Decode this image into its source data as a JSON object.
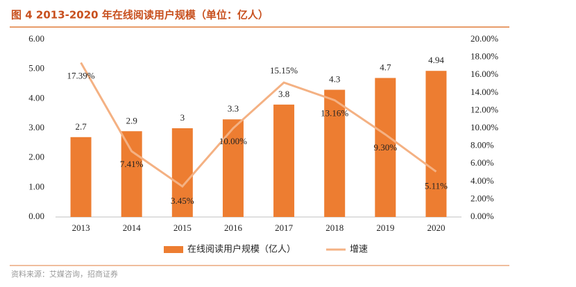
{
  "chart_data": {
    "type": "bar-line",
    "title": "图 4 2013-2020 年在线阅读用户规模（单位：亿人）",
    "source": "资料来源：艾媒咨询，招商证券",
    "categories": [
      "2013",
      "2014",
      "2015",
      "2016",
      "2017",
      "2018",
      "2019",
      "2020"
    ],
    "series": [
      {
        "name": "在线阅读用户规模（亿人）",
        "type": "bar",
        "color": "#ed7d31",
        "axis": "y",
        "values": [
          2.7,
          2.9,
          3,
          3.3,
          3.8,
          4.3,
          4.7,
          4.94
        ]
      },
      {
        "name": "增速",
        "type": "line",
        "color": "#f4b183",
        "axis": "y2",
        "values": [
          17.39,
          7.41,
          3.45,
          10.0,
          15.15,
          13.16,
          9.3,
          5.11
        ],
        "value_labels": [
          "17.39%",
          "7.41%",
          "3.45%",
          "10.00%",
          "15.15%",
          "13.16%",
          "9.30%",
          "5.11%"
        ]
      }
    ],
    "ylim": [
      0,
      6
    ],
    "yticks": [
      {
        "value": 0,
        "label": "0.00"
      },
      {
        "value": 1,
        "label": "1.00"
      },
      {
        "value": 2,
        "label": "2.00"
      },
      {
        "value": 3,
        "label": "3.00"
      },
      {
        "value": 4,
        "label": "4.00"
      },
      {
        "value": 5,
        "label": "5.00"
      },
      {
        "value": 6,
        "label": "6.00"
      }
    ],
    "y2lim": [
      0,
      20
    ],
    "y2ticks": [
      {
        "value": 0,
        "label": "0.00%"
      },
      {
        "value": 2,
        "label": "2.00%"
      },
      {
        "value": 4,
        "label": "4.00%"
      },
      {
        "value": 6,
        "label": "6.00%"
      },
      {
        "value": 8,
        "label": "8.00%"
      },
      {
        "value": 10,
        "label": "10.00%"
      },
      {
        "value": 12,
        "label": "12.00%"
      },
      {
        "value": 14,
        "label": "14.00%"
      },
      {
        "value": 16,
        "label": "16.00%"
      },
      {
        "value": 18,
        "label": "18.00%"
      },
      {
        "value": 20,
        "label": "20.00%"
      }
    ],
    "grid": false
  }
}
